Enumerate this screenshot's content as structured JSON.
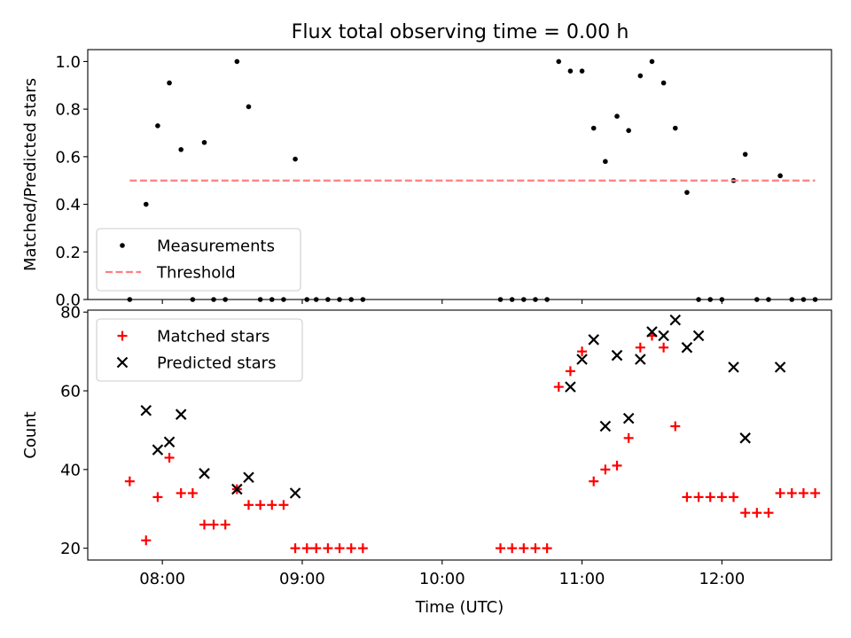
{
  "figure": {
    "title": "Flux total observing time = 0.00 h"
  },
  "chart_data": [
    {
      "type": "scatter",
      "ylabel": "Matched/Predicted stars",
      "xlabel": "",
      "xlim": [
        "07:28",
        "12:47"
      ],
      "ylim": [
        0,
        1.05
      ],
      "yticks": [
        0.0,
        0.2,
        0.4,
        0.6,
        0.8,
        1.0
      ],
      "ytick_labels": [
        "0.0",
        "0.2",
        "0.4",
        "0.6",
        "0.8",
        "1.0"
      ],
      "xticks": [
        "08:00",
        "09:00",
        "10:00",
        "11:00",
        "12:00"
      ],
      "show_xtick_labels": false,
      "legend_location": "lower-left",
      "series": [
        {
          "name": "Measurements",
          "marker": "dot",
          "color": "#000000",
          "x": [
            "07:46",
            "07:53",
            "07:58",
            "08:03",
            "08:08",
            "08:13",
            "08:18",
            "08:22",
            "08:27",
            "08:32",
            "08:37",
            "08:42",
            "08:47",
            "08:52",
            "08:57",
            "09:02",
            "09:06",
            "09:11",
            "09:16",
            "09:21",
            "09:26",
            "10:25",
            "10:30",
            "10:35",
            "10:40",
            "10:45",
            "10:50",
            "10:55",
            "11:00",
            "11:05",
            "11:10",
            "11:15",
            "11:20",
            "11:25",
            "11:30",
            "11:35",
            "11:40",
            "11:45",
            "11:50",
            "11:55",
            "12:00",
            "12:05",
            "12:10",
            "12:15",
            "12:20",
            "12:25",
            "12:30",
            "12:35",
            "12:40"
          ],
          "y": [
            0.0,
            0.4,
            0.73,
            0.91,
            0.63,
            0.0,
            0.66,
            0.0,
            0.0,
            1.0,
            0.81,
            0.0,
            0.0,
            0.0,
            0.59,
            0.0,
            0.0,
            0.0,
            0.0,
            0.0,
            0.0,
            0.0,
            0.0,
            0.0,
            0.0,
            0.0,
            1.0,
            0.96,
            0.96,
            0.72,
            0.58,
            0.77,
            0.71,
            0.94,
            1.0,
            0.91,
            0.72,
            0.45,
            0.0,
            0.0,
            0.0,
            0.5,
            0.61,
            0.0,
            0.0,
            0.52,
            0.0,
            0.0,
            0.0
          ]
        },
        {
          "name": "Threshold",
          "style": "dashed-line",
          "color": "#ff7f7f",
          "x": [
            "07:46",
            "12:40"
          ],
          "y": [
            0.5,
            0.5
          ]
        }
      ]
    },
    {
      "type": "scatter",
      "ylabel": "Count",
      "xlabel": "Time (UTC)",
      "xlim": [
        "07:28",
        "12:47"
      ],
      "ylim": [
        17,
        80.5
      ],
      "yticks": [
        20,
        40,
        60,
        80
      ],
      "ytick_labels": [
        "20",
        "40",
        "60",
        "80"
      ],
      "xticks": [
        "08:00",
        "09:00",
        "10:00",
        "11:00",
        "12:00"
      ],
      "xtick_labels": [
        "08:00",
        "09:00",
        "10:00",
        "11:00",
        "12:00"
      ],
      "legend_location": "upper-left",
      "series": [
        {
          "name": "Matched stars",
          "marker": "plus",
          "color": "#ff0000",
          "x": [
            "07:46",
            "07:53",
            "07:58",
            "08:03",
            "08:08",
            "08:13",
            "08:18",
            "08:22",
            "08:27",
            "08:32",
            "08:37",
            "08:42",
            "08:47",
            "08:52",
            "08:57",
            "09:02",
            "09:06",
            "09:11",
            "09:16",
            "09:21",
            "09:26",
            "10:25",
            "10:30",
            "10:35",
            "10:40",
            "10:45",
            "10:50",
            "10:55",
            "11:00",
            "11:05",
            "11:10",
            "11:15",
            "11:20",
            "11:25",
            "11:30",
            "11:35",
            "11:40",
            "11:45",
            "11:50",
            "11:55",
            "12:00",
            "12:05",
            "12:10",
            "12:15",
            "12:20",
            "12:25",
            "12:30",
            "12:35",
            "12:40"
          ],
          "y": [
            37,
            22,
            33,
            43,
            34,
            34,
            26,
            26,
            26,
            35,
            31,
            31,
            31,
            31,
            20,
            20,
            20,
            20,
            20,
            20,
            20,
            20,
            20,
            20,
            20,
            20,
            61,
            65,
            70,
            37,
            40,
            41,
            48,
            71,
            74,
            71,
            51,
            33,
            33,
            33,
            33,
            33,
            29,
            29,
            29,
            34,
            34,
            34,
            34
          ]
        },
        {
          "name": "Predicted stars",
          "marker": "x",
          "color": "#000000",
          "x": [
            "07:53",
            "07:58",
            "08:03",
            "08:08",
            "08:18",
            "08:32",
            "08:37",
            "08:57",
            "10:55",
            "11:00",
            "11:05",
            "11:10",
            "11:15",
            "11:20",
            "11:25",
            "11:30",
            "11:35",
            "11:40",
            "11:45",
            "11:50",
            "12:05",
            "12:10",
            "12:25"
          ],
          "y": [
            55,
            45,
            47,
            54,
            39,
            35,
            38,
            34,
            61,
            68,
            73,
            51,
            69,
            53,
            68,
            75,
            74,
            78,
            71,
            74,
            66,
            48,
            66
          ]
        }
      ]
    }
  ]
}
